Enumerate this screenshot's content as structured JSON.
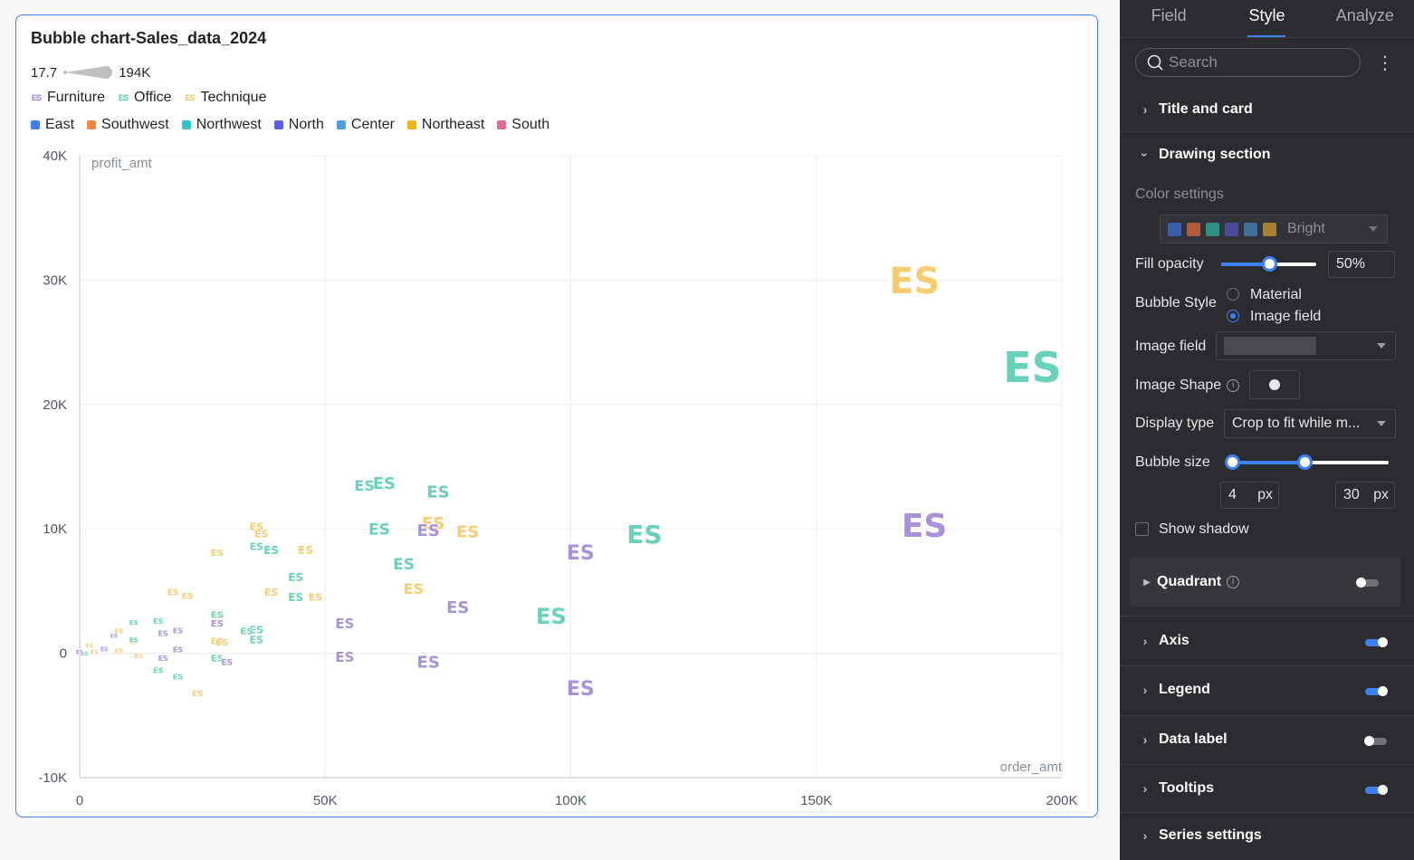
{
  "chart_card": {
    "title": "Bubble chart-Sales_data_2024",
    "size_legend": {
      "min": "17.7",
      "max": "194K"
    },
    "category_legend": [
      {
        "label": "Furniture",
        "color": "#9b7fd4"
      },
      {
        "label": "Office",
        "color": "#4ec9b0"
      },
      {
        "label": "Technique",
        "color": "#f5c35a"
      }
    ],
    "region_legend": [
      {
        "label": "East",
        "color": "#3d7ff5"
      },
      {
        "label": "Southwest",
        "color": "#f5853d"
      },
      {
        "label": "Northwest",
        "color": "#2ec7c9"
      },
      {
        "label": "North",
        "color": "#5a5fe8"
      },
      {
        "label": "Center",
        "color": "#4a9fe0"
      },
      {
        "label": "Northeast",
        "color": "#f5b50f"
      },
      {
        "label": "South",
        "color": "#e06a8f"
      }
    ]
  },
  "chart_data": {
    "type": "scatter",
    "title": "Bubble chart-Sales_data_2024",
    "xlabel": "order_amt",
    "ylabel": "profit_amt",
    "xlim": [
      0,
      200000
    ],
    "ylim": [
      -10000,
      40000
    ],
    "x_ticks": [
      "0",
      "50K",
      "100K",
      "150K",
      "200K"
    ],
    "y_ticks": [
      "-10K",
      "0",
      "10K",
      "20K",
      "30K",
      "40K"
    ],
    "grid": true,
    "bubble_label": "ES",
    "series": [
      {
        "name": "Technique",
        "color": "#f5c35a",
        "points": [
          [
            170000,
            30000,
            40
          ],
          [
            72000,
            10500,
            18
          ],
          [
            79000,
            9800,
            18
          ],
          [
            68000,
            5200,
            16
          ],
          [
            36000,
            10200,
            11
          ],
          [
            37000,
            9600,
            11
          ],
          [
            46000,
            8300,
            12
          ],
          [
            28000,
            8100,
            10
          ],
          [
            39000,
            4900,
            11
          ],
          [
            48000,
            4500,
            11
          ],
          [
            19000,
            4900,
            9
          ],
          [
            22000,
            4600,
            9
          ],
          [
            28000,
            1000,
            10
          ],
          [
            29000,
            900,
            10
          ],
          [
            24000,
            -3200,
            9
          ],
          [
            8000,
            1800,
            7
          ],
          [
            8000,
            200,
            7
          ],
          [
            11000,
            1000,
            7
          ],
          [
            12000,
            -200,
            7
          ],
          [
            3000,
            100,
            6
          ],
          [
            2000,
            600,
            6
          ]
        ]
      },
      {
        "name": "Office",
        "color": "#4ec9b0",
        "points": [
          [
            194000,
            23000,
            46
          ],
          [
            58000,
            13500,
            16
          ],
          [
            62000,
            13700,
            18
          ],
          [
            73000,
            13000,
            18
          ],
          [
            61000,
            10000,
            17
          ],
          [
            66000,
            7200,
            17
          ],
          [
            115000,
            9600,
            28
          ],
          [
            96000,
            3000,
            24
          ],
          [
            39000,
            8300,
            12
          ],
          [
            36000,
            8600,
            11
          ],
          [
            44000,
            6100,
            12
          ],
          [
            44000,
            4500,
            12
          ],
          [
            28000,
            3100,
            10
          ],
          [
            36000,
            1900,
            11
          ],
          [
            36000,
            1100,
            11
          ],
          [
            34000,
            1800,
            10
          ],
          [
            16000,
            2600,
            8
          ],
          [
            11000,
            2500,
            7
          ],
          [
            28000,
            -400,
            10
          ],
          [
            16000,
            -1400,
            8
          ],
          [
            20000,
            -1900,
            8
          ],
          [
            11000,
            1100,
            7
          ],
          [
            5000,
            400,
            6
          ],
          [
            1000,
            0,
            6
          ]
        ]
      },
      {
        "name": "Furniture",
        "color": "#9b7fd4",
        "points": [
          [
            172000,
            10300,
            36
          ],
          [
            102000,
            8100,
            22
          ],
          [
            77000,
            3700,
            18
          ],
          [
            71000,
            9900,
            18
          ],
          [
            102000,
            -2800,
            22
          ],
          [
            71000,
            -700,
            18
          ],
          [
            54000,
            2400,
            15
          ],
          [
            54000,
            -300,
            15
          ],
          [
            28000,
            2400,
            10
          ],
          [
            30000,
            -700,
            9
          ],
          [
            20000,
            1800,
            8
          ],
          [
            20000,
            300,
            8
          ],
          [
            17000,
            1600,
            8
          ],
          [
            17000,
            -400,
            8
          ],
          [
            7000,
            1400,
            6
          ],
          [
            5000,
            300,
            6
          ],
          [
            0,
            100,
            6
          ]
        ]
      }
    ]
  },
  "panel": {
    "tabs": [
      {
        "label": "Field",
        "active": false
      },
      {
        "label": "Style",
        "active": true
      },
      {
        "label": "Analyze",
        "active": false
      }
    ],
    "search_placeholder": "Search",
    "sections": {
      "title_card": "Title and card",
      "drawing": "Drawing section",
      "quadrant": "Quadrant",
      "axis": "Axis",
      "legend": "Legend",
      "data_label": "Data label",
      "tooltips": "Tooltips",
      "series": "Series settings"
    },
    "toggles": {
      "quadrant": false,
      "axis": true,
      "legend": true,
      "data_label": false,
      "tooltips": true
    },
    "color_settings": {
      "label": "Color settings",
      "palette_name": "Bright",
      "palette": [
        "#3a5fa8",
        "#b35a3a",
        "#2f8f82",
        "#4b4a9e",
        "#3f6f9a",
        "#a8812f"
      ]
    },
    "fill_opacity": {
      "label": "Fill opacity",
      "value": "50%",
      "fraction": 0.5
    },
    "bubble_style": {
      "label": "Bubble Style",
      "options": [
        "Material",
        "Image field"
      ],
      "selected": "Image field"
    },
    "image_field": {
      "label": "Image field"
    },
    "image_shape": {
      "label": "Image Shape"
    },
    "display_type": {
      "label": "Display type",
      "value": "Crop to fit while m..."
    },
    "bubble_size": {
      "label": "Bubble size",
      "min": "4",
      "max": "30",
      "unit": "px",
      "range_min": 0,
      "range_max": 0.46
    },
    "show_shadow": {
      "label": "Show shadow",
      "checked": false
    },
    "info_glyph": "i",
    "kebab_glyph": "⋮"
  }
}
